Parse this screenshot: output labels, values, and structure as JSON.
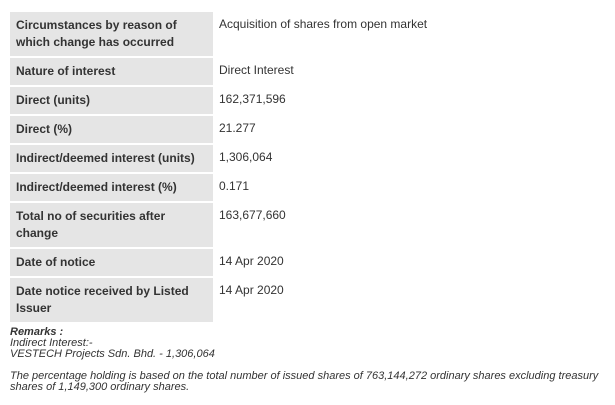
{
  "rows": [
    {
      "label": "Circumstances by reason of which change has occurred",
      "value": "Acquisition of shares from open market"
    },
    {
      "label": "Nature of interest",
      "value": "Direct Interest"
    },
    {
      "label": "Direct (units)",
      "value": "162,371,596"
    },
    {
      "label": "Direct (%)",
      "value": "21.277"
    },
    {
      "label": "Indirect/deemed interest (units)",
      "value": "1,306,064"
    },
    {
      "label": "Indirect/deemed interest (%)",
      "value": "0.171"
    },
    {
      "label": "Total no of securities after change",
      "value": "163,677,660"
    },
    {
      "label": "Date of notice",
      "value": "14 Apr 2020"
    },
    {
      "label": "Date notice received by Listed Issuer",
      "value": "14 Apr 2020"
    }
  ],
  "remarks": {
    "title": "Remarks :",
    "line1": "Indirect Interest:-",
    "line2": "VESTECH Projects Sdn. Bhd. - 1,306,064",
    "line3": "The percentage holding is based on the total number of issued shares of 763,144,272 ordinary shares excluding treasury shares of 1,149,300 ordinary shares."
  }
}
